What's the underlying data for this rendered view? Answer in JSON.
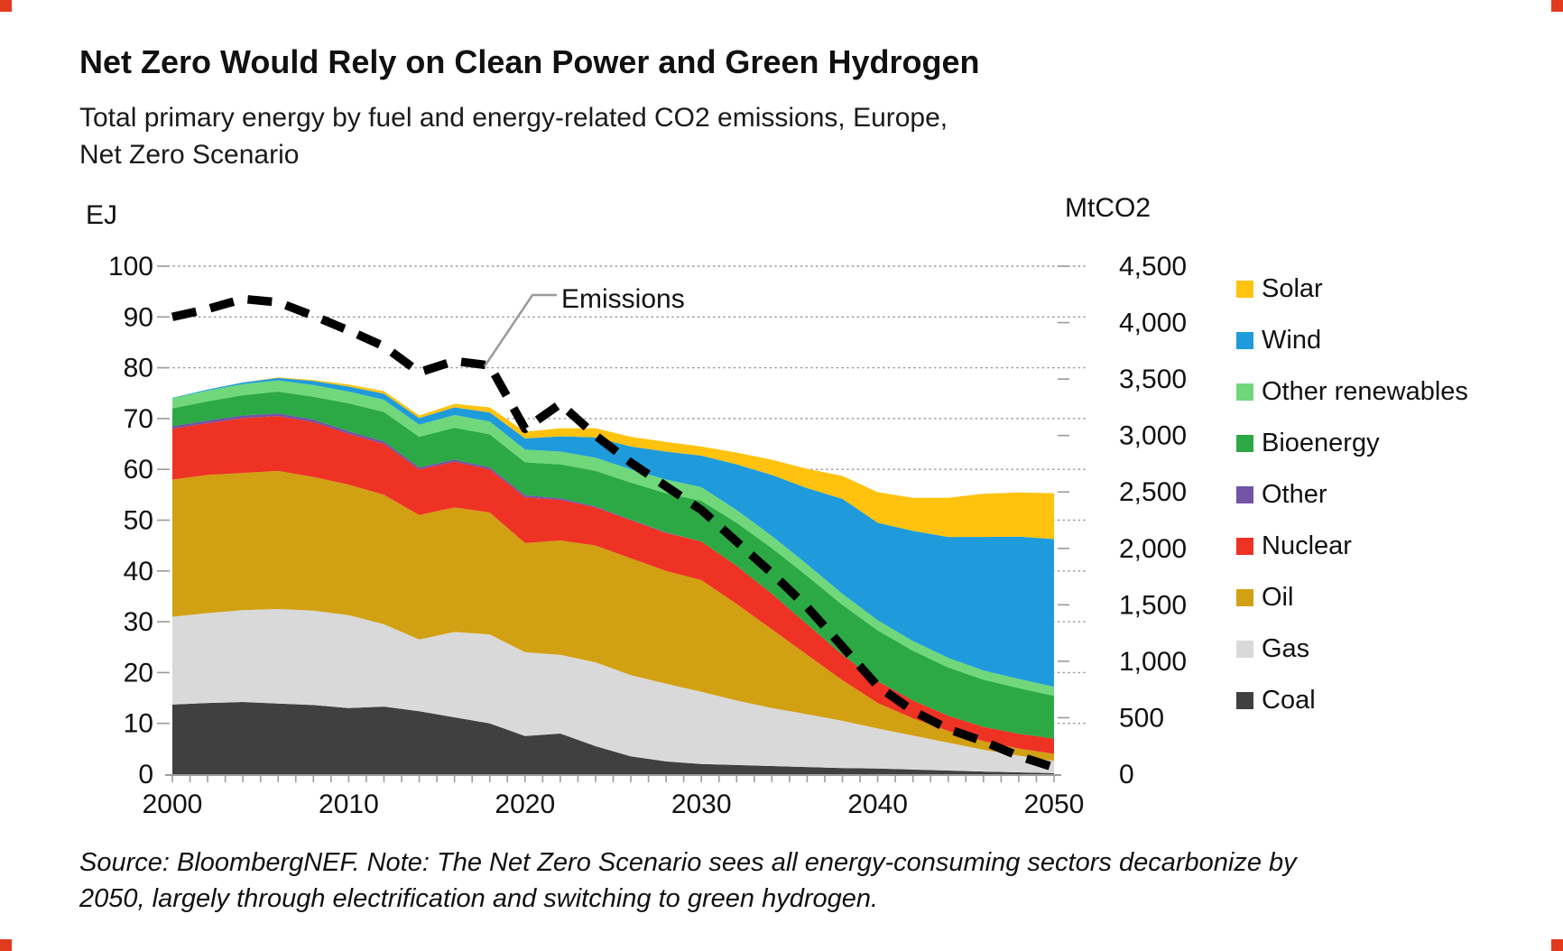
{
  "title": "Net Zero Would Rely on Clean Power and Green Hydrogen",
  "subtitle": {
    "line1": "Total primary energy by fuel and energy-related CO2 emissions, Europe,",
    "line2": "Net Zero Scenario"
  },
  "annotation": {
    "label": "Emissions"
  },
  "source_note": {
    "line1": "Source: BloombergNEF. Note: The Net Zero Scenario sees all energy-consuming sectors decarbonize by",
    "line2": "2050, largely through electrification and switching to green hydrogen."
  },
  "legend": {
    "items": [
      {
        "label": "Solar",
        "color": "#FFC20E"
      },
      {
        "label": "Wind",
        "color": "#1F9BDB"
      },
      {
        "label": "Other renewables",
        "color": "#70D87B"
      },
      {
        "label": "Bioenergy",
        "color": "#2CA945"
      },
      {
        "label": "Other",
        "color": "#7253A5"
      },
      {
        "label": "Nuclear",
        "color": "#EE3224"
      },
      {
        "label": "Oil",
        "color": "#D2A013"
      },
      {
        "label": "Gas",
        "color": "#D9D9D9"
      },
      {
        "label": "Coal",
        "color": "#404040"
      }
    ]
  },
  "chart_data": {
    "type": "area",
    "subtype": "stacked-area-with-secondary-axis-line",
    "title": "Total primary energy by fuel and energy-related CO2 emissions, Europe, Net Zero Scenario",
    "left_axis_unit": "EJ",
    "right_axis_unit": "MtCO2",
    "ylim_left": [
      0,
      100
    ],
    "ylim_right": [
      0,
      4500
    ],
    "x_range": [
      2000,
      2050
    ],
    "left_ticks": [
      0,
      10,
      20,
      30,
      40,
      50,
      60,
      70,
      80,
      90,
      100
    ],
    "right_ticks": [
      0,
      500,
      1000,
      1500,
      2000,
      2500,
      3000,
      3500,
      4000,
      4500
    ],
    "right_tick_labels": [
      "0",
      "500",
      "1,000",
      "1,500",
      "2,000",
      "2,500",
      "3,000",
      "3,500",
      "4,000",
      "4,500"
    ],
    "x_tick_labels": [
      "2000",
      "2010",
      "2020",
      "2030",
      "2040",
      "2050"
    ],
    "x_minor_tick_step_years": 1,
    "grid": "horizontal-dashed",
    "legend_position": "right",
    "x": [
      2000,
      2002,
      2004,
      2006,
      2008,
      2010,
      2012,
      2014,
      2016,
      2018,
      2020,
      2022,
      2024,
      2026,
      2028,
      2030,
      2032,
      2034,
      2036,
      2038,
      2040,
      2042,
      2044,
      2046,
      2048,
      2050
    ],
    "series": [
      {
        "name": "Coal",
        "color": "#404040",
        "unit": "EJ",
        "values": [
          13.7,
          14.0,
          14.2,
          13.9,
          13.6,
          13.0,
          13.3,
          12.4,
          11.2,
          10.0,
          7.5,
          8.0,
          5.5,
          3.5,
          2.5,
          2.0,
          1.8,
          1.6,
          1.4,
          1.2,
          1.1,
          0.9,
          0.7,
          0.5,
          0.35,
          0.2
        ]
      },
      {
        "name": "Gas",
        "color": "#D9D9D9",
        "unit": "EJ",
        "values": [
          17.3,
          17.7,
          18.1,
          18.6,
          18.6,
          18.3,
          16.2,
          14.1,
          16.8,
          17.5,
          16.5,
          15.5,
          16.5,
          16.0,
          15.3,
          14.2,
          12.7,
          11.4,
          10.4,
          9.3,
          7.9,
          6.7,
          5.5,
          4.3,
          3.3,
          2.4
        ]
      },
      {
        "name": "Oil",
        "color": "#D2A013",
        "unit": "EJ",
        "values": [
          27.0,
          27.2,
          27.0,
          27.2,
          26.3,
          25.7,
          25.5,
          24.5,
          24.5,
          24.0,
          21.5,
          22.5,
          23.0,
          23.0,
          22.2,
          22.0,
          19.0,
          15.5,
          11.7,
          8.0,
          5.0,
          3.4,
          2.3,
          1.7,
          1.4,
          1.4
        ]
      },
      {
        "name": "Nuclear",
        "color": "#EE3224",
        "unit": "EJ",
        "values": [
          10.0,
          10.2,
          10.8,
          10.8,
          10.8,
          10.0,
          10.0,
          9.0,
          9.0,
          8.5,
          9.0,
          8.0,
          7.5,
          7.5,
          7.5,
          7.6,
          7.5,
          7.0,
          6.0,
          5.0,
          4.3,
          3.5,
          3.0,
          2.8,
          2.9,
          3.0
        ]
      },
      {
        "name": "Other",
        "color": "#7253A5",
        "unit": "EJ",
        "values": [
          0.5,
          0.5,
          0.5,
          0.5,
          0.5,
          0.5,
          0.5,
          0.4,
          0.4,
          0.4,
          0.4,
          0.3,
          0.2,
          0.1,
          0.1,
          0,
          0,
          0,
          0,
          0,
          0,
          0,
          0,
          0,
          0,
          0
        ]
      },
      {
        "name": "Bioenergy",
        "color": "#2CA945",
        "unit": "EJ",
        "values": [
          3.5,
          3.8,
          4.0,
          4.3,
          4.5,
          5.5,
          5.8,
          6.0,
          6.3,
          6.5,
          6.5,
          6.7,
          7.0,
          7.3,
          7.7,
          8.0,
          8.5,
          9.0,
          9.5,
          9.8,
          10.0,
          9.8,
          9.5,
          9.3,
          9.0,
          8.4
        ]
      },
      {
        "name": "Other renewables",
        "color": "#70D87B",
        "unit": "EJ",
        "values": [
          2.0,
          2.1,
          2.2,
          2.2,
          2.3,
          2.3,
          2.4,
          2.4,
          2.5,
          2.5,
          2.5,
          2.5,
          2.6,
          2.6,
          2.7,
          2.7,
          2.5,
          2.4,
          2.3,
          2.2,
          2.0,
          1.9,
          1.9,
          1.8,
          1.8,
          1.8
        ]
      },
      {
        "name": "Wind",
        "color": "#1F9BDB",
        "unit": "EJ",
        "values": [
          0.1,
          0.2,
          0.3,
          0.5,
          0.8,
          1.0,
          1.2,
          1.3,
          1.5,
          1.8,
          2.2,
          3.0,
          4.0,
          4.5,
          5.5,
          6.2,
          9.0,
          12.0,
          15.0,
          18.7,
          19.2,
          21.7,
          23.8,
          26.3,
          28.0,
          29.1
        ]
      },
      {
        "name": "Solar",
        "color": "#FFC20E",
        "unit": "EJ",
        "values": [
          0,
          0,
          0,
          0.1,
          0.2,
          0.4,
          0.5,
          0.5,
          0.7,
          1.0,
          1.3,
          1.6,
          1.8,
          1.9,
          1.9,
          1.8,
          2.3,
          3.0,
          3.8,
          4.5,
          6.0,
          6.5,
          7.7,
          8.5,
          8.7,
          9.0
        ]
      }
    ],
    "line": {
      "name": "Emissions",
      "color": "#000000",
      "style": "dashed-thick",
      "axis": "right",
      "unit": "MtCO2",
      "values": [
        4050,
        4120,
        4210,
        4180,
        4060,
        3930,
        3790,
        3560,
        3660,
        3620,
        3060,
        3280,
        3000,
        2760,
        2550,
        2340,
        2060,
        1780,
        1480,
        1130,
        780,
        560,
        400,
        290,
        160,
        60
      ]
    }
  }
}
